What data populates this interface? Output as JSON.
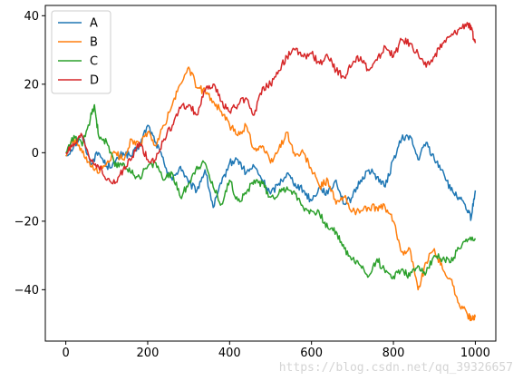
{
  "chart_data": {
    "type": "line",
    "title": "",
    "xlabel": "",
    "ylabel": "",
    "xlim": [
      -50,
      1050
    ],
    "ylim": [
      -55,
      43
    ],
    "xticks": [
      0,
      200,
      400,
      600,
      800,
      1000
    ],
    "yticks": [
      -40,
      -20,
      0,
      20,
      40
    ],
    "grid": false,
    "legend_position": "top-left",
    "series": [
      {
        "name": "A",
        "color": "#1f77b4",
        "points": [
          [
            0,
            -1
          ],
          [
            20,
            2
          ],
          [
            40,
            5
          ],
          [
            60,
            -3
          ],
          [
            80,
            0
          ],
          [
            100,
            -4
          ],
          [
            120,
            -3
          ],
          [
            140,
            0
          ],
          [
            160,
            -1
          ],
          [
            180,
            2
          ],
          [
            200,
            8
          ],
          [
            220,
            3
          ],
          [
            240,
            -3
          ],
          [
            260,
            -8
          ],
          [
            280,
            -4
          ],
          [
            300,
            -9
          ],
          [
            320,
            -11
          ],
          [
            340,
            -5
          ],
          [
            360,
            -16
          ],
          [
            380,
            -9
          ],
          [
            400,
            -3
          ],
          [
            420,
            -2
          ],
          [
            440,
            -6
          ],
          [
            460,
            -4
          ],
          [
            480,
            -8
          ],
          [
            500,
            -12
          ],
          [
            520,
            -9
          ],
          [
            540,
            -6
          ],
          [
            560,
            -9
          ],
          [
            580,
            -11
          ],
          [
            600,
            -14
          ],
          [
            620,
            -10
          ],
          [
            640,
            -12
          ],
          [
            660,
            -8
          ],
          [
            680,
            -15
          ],
          [
            700,
            -13
          ],
          [
            720,
            -8
          ],
          [
            740,
            -5
          ],
          [
            760,
            -7
          ],
          [
            780,
            -10
          ],
          [
            800,
            -2
          ],
          [
            820,
            4
          ],
          [
            840,
            5
          ],
          [
            860,
            -2
          ],
          [
            880,
            3
          ],
          [
            900,
            -2
          ],
          [
            920,
            -5
          ],
          [
            940,
            -11
          ],
          [
            960,
            -13
          ],
          [
            980,
            -17
          ],
          [
            990,
            -19
          ],
          [
            1000,
            -11
          ]
        ]
      },
      {
        "name": "B",
        "color": "#ff7f0e",
        "points": [
          [
            0,
            -1
          ],
          [
            20,
            4
          ],
          [
            40,
            0
          ],
          [
            60,
            -4
          ],
          [
            80,
            -6
          ],
          [
            100,
            -3
          ],
          [
            120,
            0
          ],
          [
            140,
            -2
          ],
          [
            160,
            4
          ],
          [
            180,
            2
          ],
          [
            200,
            6
          ],
          [
            220,
            2
          ],
          [
            240,
            8
          ],
          [
            260,
            14
          ],
          [
            280,
            20
          ],
          [
            300,
            25
          ],
          [
            320,
            19
          ],
          [
            340,
            18
          ],
          [
            360,
            15
          ],
          [
            380,
            12
          ],
          [
            400,
            8
          ],
          [
            420,
            5
          ],
          [
            440,
            8
          ],
          [
            460,
            1
          ],
          [
            480,
            2
          ],
          [
            500,
            -3
          ],
          [
            520,
            1
          ],
          [
            540,
            6
          ],
          [
            560,
            -1
          ],
          [
            580,
            0
          ],
          [
            600,
            -5
          ],
          [
            620,
            -10
          ],
          [
            640,
            -8
          ],
          [
            660,
            -15
          ],
          [
            680,
            -13
          ],
          [
            700,
            -17
          ],
          [
            720,
            -17
          ],
          [
            740,
            -16
          ],
          [
            760,
            -16
          ],
          [
            780,
            -16
          ],
          [
            800,
            -20
          ],
          [
            820,
            -29
          ],
          [
            840,
            -28
          ],
          [
            860,
            -40
          ],
          [
            880,
            -32
          ],
          [
            900,
            -28
          ],
          [
            920,
            -34
          ],
          [
            940,
            -37
          ],
          [
            960,
            -44
          ],
          [
            980,
            -47
          ],
          [
            990,
            -49
          ],
          [
            1000,
            -48
          ]
        ]
      },
      {
        "name": "C",
        "color": "#2ca02c",
        "points": [
          [
            0,
            0
          ],
          [
            20,
            5
          ],
          [
            40,
            2
          ],
          [
            60,
            10
          ],
          [
            70,
            14
          ],
          [
            80,
            5
          ],
          [
            100,
            3
          ],
          [
            120,
            -4
          ],
          [
            140,
            -3
          ],
          [
            160,
            -6
          ],
          [
            180,
            -7
          ],
          [
            200,
            -4
          ],
          [
            220,
            -3
          ],
          [
            240,
            -8
          ],
          [
            260,
            -6
          ],
          [
            280,
            -13
          ],
          [
            300,
            -9
          ],
          [
            320,
            -4
          ],
          [
            340,
            -3
          ],
          [
            360,
            -10
          ],
          [
            380,
            -15
          ],
          [
            400,
            -8
          ],
          [
            420,
            -14
          ],
          [
            440,
            -12
          ],
          [
            460,
            -8
          ],
          [
            480,
            -9
          ],
          [
            500,
            -13
          ],
          [
            520,
            -12
          ],
          [
            540,
            -10
          ],
          [
            560,
            -12
          ],
          [
            580,
            -16
          ],
          [
            600,
            -17
          ],
          [
            620,
            -18
          ],
          [
            640,
            -22
          ],
          [
            660,
            -23
          ],
          [
            680,
            -28
          ],
          [
            700,
            -31
          ],
          [
            720,
            -33
          ],
          [
            740,
            -36
          ],
          [
            760,
            -31
          ],
          [
            780,
            -35
          ],
          [
            800,
            -36
          ],
          [
            820,
            -34
          ],
          [
            840,
            -36
          ],
          [
            860,
            -33
          ],
          [
            880,
            -35
          ],
          [
            900,
            -30
          ],
          [
            920,
            -31
          ],
          [
            940,
            -32
          ],
          [
            960,
            -28
          ],
          [
            980,
            -26
          ],
          [
            1000,
            -25
          ]
        ]
      },
      {
        "name": "D",
        "color": "#d62728",
        "points": [
          [
            0,
            0
          ],
          [
            20,
            2
          ],
          [
            40,
            5
          ],
          [
            60,
            -2
          ],
          [
            80,
            -4
          ],
          [
            100,
            -8
          ],
          [
            120,
            -9
          ],
          [
            140,
            -5
          ],
          [
            160,
            -2
          ],
          [
            180,
            3
          ],
          [
            200,
            -2
          ],
          [
            220,
            -2
          ],
          [
            240,
            4
          ],
          [
            260,
            8
          ],
          [
            280,
            13
          ],
          [
            300,
            14
          ],
          [
            320,
            11
          ],
          [
            340,
            18
          ],
          [
            360,
            20
          ],
          [
            380,
            15
          ],
          [
            400,
            12
          ],
          [
            420,
            14
          ],
          [
            440,
            16
          ],
          [
            460,
            11
          ],
          [
            480,
            19
          ],
          [
            500,
            20
          ],
          [
            520,
            24
          ],
          [
            540,
            28
          ],
          [
            560,
            30
          ],
          [
            580,
            28
          ],
          [
            600,
            29
          ],
          [
            620,
            26
          ],
          [
            640,
            28
          ],
          [
            660,
            24
          ],
          [
            680,
            22
          ],
          [
            700,
            26
          ],
          [
            720,
            28
          ],
          [
            740,
            24
          ],
          [
            760,
            27
          ],
          [
            780,
            31
          ],
          [
            800,
            28
          ],
          [
            820,
            33
          ],
          [
            840,
            32
          ],
          [
            860,
            29
          ],
          [
            880,
            25
          ],
          [
            900,
            28
          ],
          [
            920,
            32
          ],
          [
            940,
            34
          ],
          [
            960,
            36
          ],
          [
            980,
            38
          ],
          [
            990,
            36
          ],
          [
            1000,
            32
          ]
        ]
      }
    ]
  },
  "watermark": "https://blog.csdn.net/qq_39326657"
}
